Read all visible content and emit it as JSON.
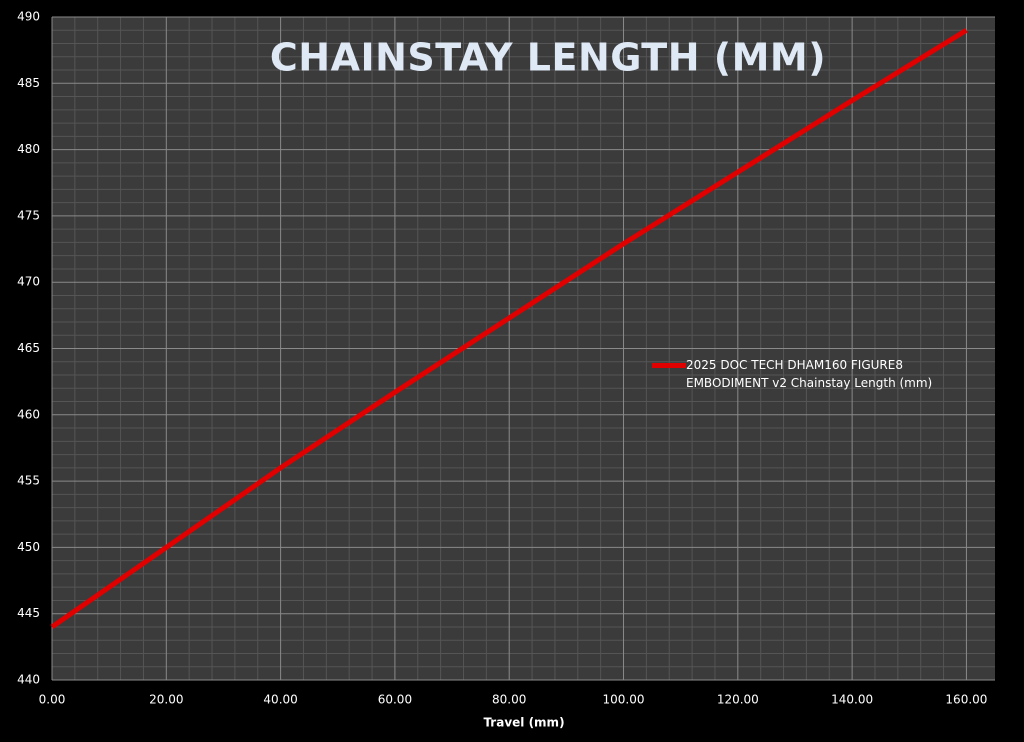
{
  "chart_data": {
    "type": "line",
    "title": "CHAINSTAY LENGTH (MM)",
    "x_label": "Travel (mm)",
    "x": [
      0,
      20,
      40,
      60,
      80,
      100,
      120,
      140,
      160
    ],
    "series": [
      {
        "name": "2025 DOC TECH DHAM160 FIGURE8 EMBODIMENT v2 Chainstay Length (mm)",
        "color": "#e00000",
        "values": [
          444,
          450.0,
          456.0,
          461.7,
          467.3,
          472.9,
          478.3,
          483.7,
          489.0
        ]
      }
    ],
    "xlim": [
      0,
      165
    ],
    "xticks": [
      {
        "value": 0,
        "label": "0.00"
      },
      {
        "value": 20,
        "label": "20.00"
      },
      {
        "value": 40,
        "label": "40.00"
      },
      {
        "value": 60,
        "label": "60.00"
      },
      {
        "value": 80,
        "label": "80.00"
      },
      {
        "value": 100,
        "label": "100.00"
      },
      {
        "value": 120,
        "label": "120.00"
      },
      {
        "value": 140,
        "label": "140.00"
      },
      {
        "value": 160,
        "label": "160.00"
      }
    ],
    "ylim": [
      440,
      490
    ],
    "yticks": [
      440,
      445,
      450,
      455,
      460,
      465,
      470,
      475,
      480,
      485,
      490
    ],
    "grid": true,
    "legend": "right"
  }
}
